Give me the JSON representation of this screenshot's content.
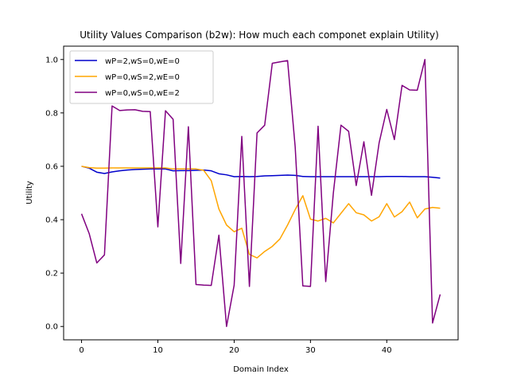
{
  "chart_data": {
    "type": "line",
    "title": "Utility Values Comparison (b2w): How much each componet explain Utility)",
    "xlabel": "Domain Index",
    "ylabel": "Utility",
    "xlim": [
      -2.35,
      49.35
    ],
    "ylim": [
      -0.05,
      1.05
    ],
    "xticks": [
      0,
      10,
      20,
      30,
      40
    ],
    "yticks": [
      0.0,
      0.2,
      0.4,
      0.6,
      0.8,
      1.0
    ],
    "xtick_labels": [
      "0",
      "10",
      "20",
      "30",
      "40"
    ],
    "ytick_labels": [
      "0.0",
      "0.2",
      "0.4",
      "0.6",
      "0.8",
      "1.0"
    ],
    "grid": false,
    "legend_position": "upper-left",
    "series": [
      {
        "name": "wP=2,wS=0,wE=0",
        "color": "#0000cc",
        "x": [
          0,
          1,
          2,
          3,
          4,
          5,
          6,
          7,
          8,
          9,
          10,
          11,
          12,
          13,
          14,
          15,
          16,
          17,
          18,
          19,
          20,
          21,
          22,
          23,
          24,
          25,
          26,
          27,
          28,
          29,
          30,
          31,
          32,
          33,
          34,
          35,
          36,
          37,
          38,
          39,
          40,
          41,
          42,
          43,
          44,
          45,
          46,
          47
        ],
        "values": [
          0.6,
          0.593,
          0.578,
          0.573,
          0.579,
          0.583,
          0.586,
          0.588,
          0.589,
          0.59,
          0.59,
          0.59,
          0.583,
          0.584,
          0.584,
          0.585,
          0.586,
          0.583,
          0.572,
          0.568,
          0.561,
          0.562,
          0.561,
          0.562,
          0.564,
          0.565,
          0.566,
          0.567,
          0.566,
          0.562,
          0.561,
          0.561,
          0.561,
          0.561,
          0.561,
          0.561,
          0.561,
          0.561,
          0.561,
          0.561,
          0.562,
          0.562,
          0.562,
          0.561,
          0.561,
          0.561,
          0.559,
          0.556
        ]
      },
      {
        "name": "wP=0,wS=2,wE=0",
        "color": "#ffa500",
        "x": [
          0,
          1,
          2,
          3,
          4,
          5,
          6,
          7,
          8,
          9,
          10,
          11,
          12,
          13,
          14,
          15,
          16,
          17,
          18,
          19,
          20,
          21,
          22,
          23,
          24,
          25,
          26,
          27,
          28,
          29,
          30,
          31,
          32,
          33,
          34,
          35,
          36,
          37,
          38,
          39,
          40,
          41,
          42,
          43,
          44,
          45,
          46,
          47
        ],
        "values": [
          0.6,
          0.595,
          0.593,
          0.593,
          0.594,
          0.594,
          0.594,
          0.594,
          0.594,
          0.594,
          0.594,
          0.594,
          0.59,
          0.59,
          0.59,
          0.59,
          0.585,
          0.546,
          0.44,
          0.38,
          0.355,
          0.368,
          0.27,
          0.257,
          0.281,
          0.3,
          0.328,
          0.38,
          0.438,
          0.49,
          0.402,
          0.395,
          0.405,
          0.388,
          0.424,
          0.46,
          0.426,
          0.418,
          0.395,
          0.411,
          0.46,
          0.41,
          0.43,
          0.466,
          0.407,
          0.44,
          0.446,
          0.443
        ]
      },
      {
        "name": "wP=0,wS=0,wE=2",
        "color": "#800080",
        "x": [
          0,
          1,
          2,
          3,
          4,
          5,
          6,
          7,
          8,
          9,
          10,
          11,
          12,
          13,
          14,
          15,
          16,
          17,
          18,
          19,
          20,
          21,
          22,
          23,
          24,
          25,
          26,
          27,
          28,
          29,
          30,
          31,
          32,
          33,
          34,
          35,
          36,
          37,
          38,
          39,
          40,
          41,
          42,
          43,
          44,
          45,
          46,
          47
        ],
        "values": [
          0.422,
          0.348,
          0.238,
          0.268,
          0.826,
          0.809,
          0.811,
          0.812,
          0.806,
          0.805,
          0.373,
          0.808,
          0.776,
          0.236,
          0.748,
          0.157,
          0.155,
          0.154,
          0.342,
          0.0,
          0.155,
          0.712,
          0.15,
          0.725,
          0.754,
          0.986,
          0.991,
          0.996,
          0.672,
          0.152,
          0.15,
          0.75,
          0.168,
          0.5,
          0.754,
          0.731,
          0.528,
          0.692,
          0.491,
          0.688,
          0.813,
          0.7,
          0.903,
          0.886,
          0.885,
          1.0,
          0.013,
          0.12
        ]
      }
    ]
  }
}
